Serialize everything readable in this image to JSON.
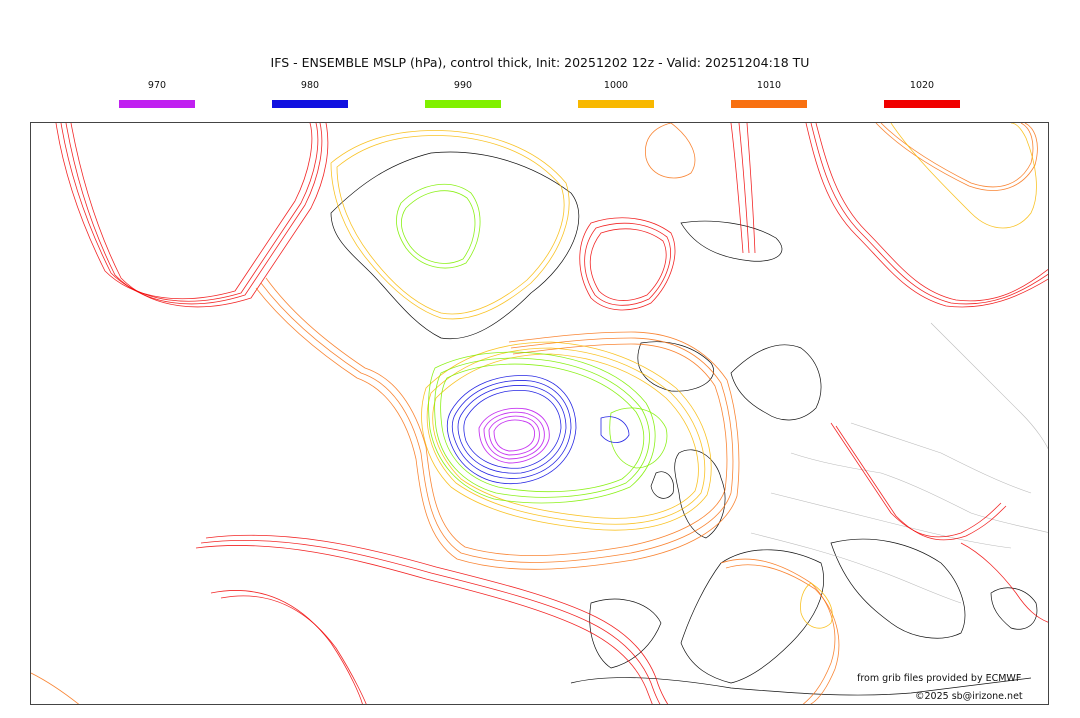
{
  "header": {
    "title": "IFS - ENSEMBLE MSLP (hPa), control thick, Init: 20251202 12z - Valid: 20251204:18 TU"
  },
  "legend": [
    {
      "label": "970",
      "color": "#c020f0"
    },
    {
      "label": "980",
      "color": "#1010e0"
    },
    {
      "label": "990",
      "color": "#80f000"
    },
    {
      "label": "1000",
      "color": "#f8b800"
    },
    {
      "label": "1010",
      "color": "#f87010"
    },
    {
      "label": "1020",
      "color": "#f00000"
    }
  ],
  "credits": {
    "source": "from grib files provided by ECMWF",
    "copyright": "©2025 sb@irizone.net"
  }
}
